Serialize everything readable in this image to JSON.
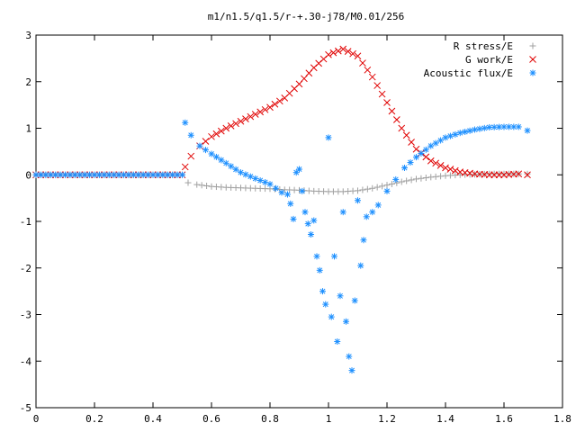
{
  "chart_data": {
    "type": "scatter",
    "title": "m1/n1.5/q1.5/r-+.30-j78/M0.01/256",
    "xlabel": "",
    "ylabel": "",
    "xlim": [
      0,
      1.8
    ],
    "ylim": [
      -5,
      3
    ],
    "xticks": [
      "0",
      "0.2",
      "0.4",
      "0.6",
      "0.8",
      "1",
      "1.2",
      "1.4",
      "1.6",
      "1.8"
    ],
    "yticks": [
      "3",
      "2",
      "1",
      "0",
      "-1",
      "-2",
      "-3",
      "-4",
      "-5"
    ],
    "grid": false,
    "legend_position": "top-right",
    "series": [
      {
        "name": "R stress/E",
        "marker": "+",
        "color": "#a0a0a0",
        "points": [
          [
            0.0,
            0.0
          ],
          [
            0.1,
            0.0
          ],
          [
            0.2,
            0.0
          ],
          [
            0.3,
            0.0
          ],
          [
            0.4,
            0.0
          ],
          [
            0.5,
            0.0
          ],
          [
            0.52,
            -0.17
          ],
          [
            0.55,
            -0.21
          ],
          [
            0.6,
            -0.25
          ],
          [
            0.65,
            -0.27
          ],
          [
            0.7,
            -0.28
          ],
          [
            0.75,
            -0.29
          ],
          [
            0.8,
            -0.3
          ],
          [
            0.85,
            -0.32
          ],
          [
            0.9,
            -0.33
          ],
          [
            0.95,
            -0.35
          ],
          [
            1.0,
            -0.36
          ],
          [
            1.05,
            -0.36
          ],
          [
            1.1,
            -0.34
          ],
          [
            1.15,
            -0.29
          ],
          [
            1.2,
            -0.22
          ],
          [
            1.25,
            -0.15
          ],
          [
            1.3,
            -0.09
          ],
          [
            1.35,
            -0.05
          ],
          [
            1.4,
            -0.02
          ],
          [
            1.45,
            0.0
          ],
          [
            1.5,
            0.01
          ],
          [
            1.55,
            0.02
          ],
          [
            1.6,
            0.02
          ],
          [
            1.65,
            0.02
          ],
          [
            1.68,
            0.02
          ]
        ]
      },
      {
        "name": "G work/E",
        "marker": "x",
        "color": "#e00000",
        "points": [
          [
            0.0,
            0.0
          ],
          [
            0.1,
            0.0
          ],
          [
            0.2,
            0.0
          ],
          [
            0.3,
            0.0
          ],
          [
            0.4,
            0.0
          ],
          [
            0.5,
            0.0
          ],
          [
            0.51,
            0.17
          ],
          [
            0.53,
            0.4
          ],
          [
            0.56,
            0.62
          ],
          [
            0.6,
            0.82
          ],
          [
            0.65,
            1.0
          ],
          [
            0.7,
            1.15
          ],
          [
            0.75,
            1.3
          ],
          [
            0.8,
            1.45
          ],
          [
            0.85,
            1.65
          ],
          [
            0.9,
            1.95
          ],
          [
            0.95,
            2.3
          ],
          [
            1.0,
            2.58
          ],
          [
            1.05,
            2.7
          ],
          [
            1.1,
            2.55
          ],
          [
            1.15,
            2.1
          ],
          [
            1.2,
            1.55
          ],
          [
            1.25,
            1.0
          ],
          [
            1.3,
            0.55
          ],
          [
            1.35,
            0.3
          ],
          [
            1.4,
            0.15
          ],
          [
            1.45,
            0.06
          ],
          [
            1.5,
            0.02
          ],
          [
            1.55,
            0.0
          ],
          [
            1.6,
            0.0
          ],
          [
            1.65,
            0.02
          ],
          [
            1.68,
            0.0
          ]
        ]
      },
      {
        "name": "Acoustic flux/E",
        "marker": "*",
        "color": "#1e90ff",
        "points": [
          [
            0.0,
            0.0
          ],
          [
            0.1,
            0.0
          ],
          [
            0.2,
            0.0
          ],
          [
            0.3,
            0.0
          ],
          [
            0.4,
            0.0
          ],
          [
            0.5,
            0.0
          ],
          [
            0.51,
            1.12
          ],
          [
            0.53,
            0.85
          ],
          [
            0.56,
            0.62
          ],
          [
            0.6,
            0.45
          ],
          [
            0.65,
            0.25
          ],
          [
            0.7,
            0.05
          ],
          [
            0.75,
            -0.08
          ],
          [
            0.8,
            -0.2
          ],
          [
            0.84,
            -0.38
          ],
          [
            0.86,
            -0.42
          ],
          [
            0.87,
            -0.62
          ],
          [
            0.88,
            -0.95
          ],
          [
            0.89,
            0.05
          ],
          [
            0.9,
            0.12
          ],
          [
            0.91,
            -0.35
          ],
          [
            0.92,
            -0.8
          ],
          [
            0.93,
            -1.05
          ],
          [
            0.94,
            -1.28
          ],
          [
            0.95,
            -0.98
          ],
          [
            0.96,
            -1.75
          ],
          [
            0.97,
            -2.05
          ],
          [
            0.98,
            -2.5
          ],
          [
            0.99,
            -2.78
          ],
          [
            1.0,
            0.8
          ],
          [
            1.01,
            -3.05
          ],
          [
            1.02,
            -1.75
          ],
          [
            1.03,
            -3.58
          ],
          [
            1.04,
            -2.6
          ],
          [
            1.05,
            -0.8
          ],
          [
            1.06,
            -3.15
          ],
          [
            1.07,
            -3.9
          ],
          [
            1.08,
            -4.2
          ],
          [
            1.09,
            -2.7
          ],
          [
            1.1,
            -0.55
          ],
          [
            1.11,
            -1.95
          ],
          [
            1.12,
            -1.4
          ],
          [
            1.13,
            -0.9
          ],
          [
            1.15,
            -0.8
          ],
          [
            1.17,
            -0.65
          ],
          [
            1.2,
            -0.35
          ],
          [
            1.23,
            -0.1
          ],
          [
            1.26,
            0.15
          ],
          [
            1.3,
            0.38
          ],
          [
            1.35,
            0.62
          ],
          [
            1.4,
            0.8
          ],
          [
            1.45,
            0.9
          ],
          [
            1.5,
            0.97
          ],
          [
            1.55,
            1.02
          ],
          [
            1.6,
            1.03
          ],
          [
            1.65,
            1.03
          ],
          [
            1.68,
            0.95
          ]
        ]
      }
    ]
  }
}
